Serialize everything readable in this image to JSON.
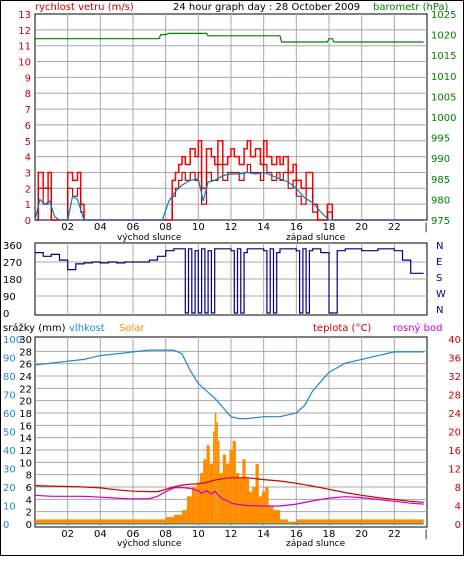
{
  "colors": {
    "wind": "#cc0000",
    "gust": "#ff0000",
    "wind_avg": "#0080c0",
    "baro": "#008000",
    "dir": "#000080",
    "humidity": "#1e88c8",
    "solar": "#ff8c00",
    "temp": "#cc0000",
    "dew": "#cc00cc",
    "rain_axis": "#0080c0",
    "grid": "#a8a8a8"
  },
  "chart_data": [
    {
      "type": "line",
      "name": "wind-baro",
      "title": "24 hour graph day : 28 October 2009",
      "ylabel": "rychlost vetru (m/s)",
      "y2label": "barometr (hPa)",
      "ylim": [
        0,
        13
      ],
      "y2lim": [
        975,
        1025
      ],
      "yticks": [
        "0",
        "1",
        "2",
        "3",
        "4",
        "5",
        "6",
        "7",
        "8",
        "9",
        "10",
        "11",
        "12",
        "13"
      ],
      "y2ticks": [
        "975",
        "980",
        "985",
        "990",
        "995",
        "1000",
        "1005",
        "1010",
        "1015",
        "1020",
        "1025"
      ],
      "xticks": [
        "02",
        "04",
        "06",
        "08",
        "10",
        "12",
        "14",
        "16",
        "18",
        "20",
        "22"
      ],
      "x_subtitle": {
        "sunrise": "východ slunce",
        "sunset": "západ slunce"
      },
      "series": [
        {
          "name": "gust",
          "x": [
            0,
            0.2,
            0.5,
            0.8,
            1.0,
            1.3,
            1.5,
            1.6,
            2.0,
            2.3,
            2.6,
            2.8,
            3.0,
            7.0,
            7.8,
            8.0,
            8.4,
            8.6,
            8.8,
            9.0,
            9.2,
            9.5,
            9.8,
            10.0,
            10.2,
            10.5,
            10.8,
            11.0,
            11.2,
            11.5,
            11.8,
            12.0,
            12.2,
            12.5,
            12.8,
            13.0,
            13.2,
            13.5,
            13.8,
            14.0,
            14.2,
            14.5,
            14.8,
            15.0,
            15.2,
            15.5,
            15.8,
            16.0,
            16.3,
            16.6,
            17.0,
            17.3,
            17.6,
            17.9,
            18.2,
            18.5,
            23.8
          ],
          "values": [
            0,
            3,
            2,
            3,
            0,
            0,
            0,
            0,
            3,
            2.5,
            3,
            1,
            0,
            0,
            0,
            0,
            2.5,
            3,
            3.5,
            4,
            3.5,
            4.5,
            4,
            5,
            2,
            4.5,
            4,
            3.5,
            5,
            3.5,
            4,
            4.5,
            4,
            3.5,
            4.5,
            5,
            4,
            4.5,
            3.5,
            5,
            4,
            3.5,
            4,
            3.5,
            4,
            3,
            3.5,
            2.5,
            2,
            3,
            1,
            0,
            0,
            1,
            0,
            0,
            0
          ]
        },
        {
          "name": "wind",
          "x": [
            0,
            0.2,
            0.5,
            0.8,
            1.0,
            1.3,
            1.5,
            1.6,
            2.0,
            2.3,
            2.6,
            2.8,
            3.0,
            7.0,
            7.8,
            8.0,
            8.4,
            8.6,
            8.8,
            9.0,
            9.2,
            9.5,
            9.8,
            10.0,
            10.2,
            10.5,
            10.8,
            11.0,
            11.2,
            11.5,
            11.8,
            12.0,
            12.2,
            12.5,
            12.8,
            13.0,
            13.2,
            13.5,
            13.8,
            14.0,
            14.2,
            14.5,
            14.8,
            15.0,
            15.2,
            15.5,
            15.8,
            16.0,
            16.3,
            16.6,
            17.0,
            17.3,
            17.6,
            17.9,
            18.2,
            18.5,
            23.8
          ],
          "values": [
            0,
            2,
            1,
            2,
            0,
            0,
            0,
            0,
            2,
            1.5,
            2,
            0.5,
            0,
            0,
            0,
            0,
            1.5,
            2,
            2.5,
            3,
            2.5,
            3,
            2.5,
            3,
            1,
            3,
            2.5,
            2.5,
            3.5,
            2.5,
            3,
            3,
            3,
            2.5,
            3,
            3.5,
            3,
            3,
            2.5,
            3.5,
            3,
            2.5,
            3,
            2.5,
            3,
            2,
            2.5,
            1.5,
            1,
            2,
            0.5,
            0,
            0,
            0.5,
            0,
            0,
            0
          ]
        },
        {
          "name": "wind_avg",
          "x": [
            0,
            0.3,
            0.6,
            0.9,
            1.2,
            1.5,
            2.0,
            2.3,
            2.6,
            3.0,
            7.0,
            7.8,
            8.2,
            8.6,
            9.0,
            9.5,
            10.0,
            10.3,
            10.6,
            11.0,
            11.5,
            12.0,
            12.5,
            13.0,
            13.5,
            14.0,
            14.5,
            15.0,
            15.5,
            16.0,
            16.5,
            17.0,
            17.5,
            18.0,
            23.8
          ],
          "values": [
            0,
            1.3,
            1,
            1.2,
            0.2,
            0,
            0,
            1.5,
            1.3,
            0,
            0,
            0,
            1.2,
            1.8,
            2.2,
            2.5,
            2.6,
            1.2,
            2.4,
            2.5,
            2.8,
            2.9,
            2.9,
            3,
            2.9,
            3,
            2.8,
            2.6,
            2.4,
            2,
            1.4,
            1.1,
            0.5,
            0,
            0
          ]
        },
        {
          "name": "barometr",
          "x": [
            0,
            7.6,
            7.7,
            8.0,
            8.2,
            10.5,
            10.6,
            15.0,
            15.1,
            17.9,
            18.0,
            18.2,
            18.3,
            23.8
          ],
          "values": [
            1019,
            1019,
            1020,
            1020,
            1020.3,
            1020.3,
            1019.7,
            1019.7,
            1018.2,
            1018.2,
            1019,
            1019,
            1018.2,
            1018.2
          ]
        }
      ]
    },
    {
      "type": "line",
      "name": "direction",
      "yticks": [
        "0",
        "90",
        "180",
        "270",
        "360"
      ],
      "y2ticks": [
        "N",
        "W",
        "S",
        "E",
        "N"
      ],
      "ylim": [
        0,
        360
      ],
      "series": [
        {
          "name": "direction",
          "x": [
            0,
            0.5,
            1.0,
            1.5,
            2.0,
            2.5,
            3.0,
            3.5,
            4.0,
            4.5,
            5.0,
            5.5,
            6.0,
            7.0,
            7.5,
            8.0,
            8.5,
            9.0,
            9.2,
            9.4,
            9.6,
            9.8,
            10.0,
            10.2,
            10.4,
            10.6,
            10.8,
            11.0,
            11.5,
            12.0,
            12.2,
            12.4,
            12.6,
            12.8,
            13.0,
            13.5,
            14.0,
            14.2,
            14.4,
            14.6,
            14.8,
            15.0,
            15.5,
            16.0,
            16.2,
            16.4,
            16.6,
            16.8,
            17.0,
            17.5,
            18.0,
            18.5,
            19.0,
            20.0,
            21.0,
            22.0,
            22.5,
            23.0,
            23.8
          ],
          "values": [
            320,
            300,
            310,
            280,
            230,
            260,
            265,
            270,
            265,
            270,
            265,
            270,
            270,
            280,
            300,
            330,
            340,
            340,
            0,
            340,
            0,
            330,
            0,
            340,
            0,
            330,
            0,
            340,
            340,
            330,
            0,
            340,
            0,
            320,
            340,
            340,
            330,
            0,
            340,
            0,
            320,
            340,
            340,
            330,
            0,
            340,
            0,
            330,
            340,
            320,
            0,
            330,
            340,
            330,
            340,
            330,
            280,
            210,
            210
          ]
        }
      ]
    },
    {
      "type": "line",
      "name": "rain-hum-solar-temp",
      "labels": {
        "rain": "srážky (mm)",
        "humidity": "vlhkost",
        "solar": "Solar",
        "temp": "teplota (°C)",
        "dew": "rosný bod"
      },
      "yticks_rain": [
        "0",
        "2",
        "4",
        "6",
        "8",
        "10",
        "12",
        "14",
        "16",
        "18",
        "20",
        "22",
        "24",
        "26",
        "28",
        "30"
      ],
      "yticks_hum": [
        "0",
        "10",
        "20",
        "30",
        "40",
        "50",
        "60",
        "70",
        "80",
        "90",
        "100"
      ],
      "yticks_temp": [
        "0",
        "2",
        "4",
        "6",
        "8",
        "10",
        "12",
        "14",
        "16",
        "18",
        "20",
        "22",
        "24",
        "26",
        "28",
        "30",
        "32",
        "34",
        "36",
        "38",
        "40"
      ],
      "xticks": [
        "02",
        "04",
        "06",
        "08",
        "10",
        "12",
        "14",
        "16",
        "18",
        "20",
        "22"
      ],
      "x_subtitle": {
        "sunrise": "východ slunce",
        "sunset": "západ slunce"
      },
      "series": [
        {
          "name": "vlhkost",
          "x": [
            0,
            1,
            2,
            3,
            4,
            5,
            6,
            7,
            8,
            8.5,
            9,
            9.5,
            10,
            10.5,
            11,
            11.5,
            12,
            12.5,
            13,
            14,
            15,
            16,
            16.5,
            17,
            18,
            19,
            20,
            21,
            22,
            23.8
          ],
          "values": [
            86,
            87,
            88,
            89,
            91,
            92,
            93,
            94,
            94,
            94,
            92,
            83,
            76,
            72,
            68,
            63,
            58,
            57,
            57,
            58,
            58,
            60,
            64,
            72,
            82,
            87,
            89,
            91,
            93,
            93
          ]
        },
        {
          "name": "teplota",
          "x": [
            0,
            1,
            2,
            3,
            4,
            5,
            6,
            7,
            7.5,
            8,
            8.5,
            9,
            9.5,
            10,
            10.5,
            11,
            11.5,
            12,
            12.5,
            13,
            13.5,
            14,
            15,
            16,
            17,
            18,
            19,
            20,
            21,
            22,
            23,
            23.8
          ],
          "values": [
            8.3,
            8.2,
            8.1,
            8.0,
            7.8,
            7.4,
            7.1,
            7.0,
            7.0,
            7.5,
            8.0,
            8.4,
            8.6,
            8.7,
            9.0,
            9.5,
            9.8,
            10.0,
            10.0,
            10.0,
            9.8,
            9.6,
            9.3,
            8.8,
            8.2,
            7.5,
            6.8,
            6.2,
            5.7,
            5.3,
            4.9,
            4.7
          ]
        },
        {
          "name": "rosny_bod",
          "x": [
            0,
            1,
            2,
            3,
            4,
            5,
            6,
            7,
            7.5,
            8,
            8.5,
            9,
            9.5,
            10,
            10.2,
            10.5,
            10.8,
            11.0,
            11.3,
            11.5,
            11.8,
            12,
            12.5,
            13,
            14,
            15,
            16,
            17,
            18,
            19,
            20,
            21,
            22,
            23,
            23.8
          ],
          "values": [
            6.2,
            6.0,
            6.0,
            6.0,
            5.8,
            5.6,
            5.4,
            5.5,
            6.0,
            7.0,
            7.8,
            7.9,
            7.7,
            7.2,
            6.6,
            7.2,
            6.5,
            7.1,
            6.0,
            5.4,
            5.0,
            4.5,
            4.2,
            4.0,
            3.9,
            3.9,
            4.3,
            5.0,
            5.6,
            5.9,
            5.7,
            5.3,
            4.9,
            4.5,
            4.3
          ]
        },
        {
          "name": "solar",
          "x": [
            0,
            7.5,
            8.0,
            8.5,
            9.0,
            9.3,
            9.6,
            9.9,
            10.1,
            10.3,
            10.5,
            10.7,
            10.9,
            11.0,
            11.1,
            11.2,
            11.3,
            11.5,
            11.7,
            11.9,
            12.1,
            12.3,
            12.5,
            12.7,
            12.9,
            13.1,
            13.3,
            13.5,
            13.7,
            13.9,
            14.1,
            14.3,
            14.6,
            15.0,
            15.5,
            16.0,
            16.5,
            23.8
          ],
          "values": [
            1,
            1,
            1.5,
            2,
            3,
            6,
            8,
            9,
            11,
            14,
            17,
            13,
            20,
            24,
            22,
            18,
            11,
            15,
            13,
            16,
            18,
            11,
            10,
            14,
            10,
            7,
            8,
            13,
            6,
            7,
            8,
            4,
            3,
            1,
            0.5,
            1,
            1,
            1
          ]
        },
        {
          "name": "srazky",
          "x": [
            0,
            23.8
          ],
          "values": [
            0,
            0
          ]
        }
      ]
    }
  ]
}
